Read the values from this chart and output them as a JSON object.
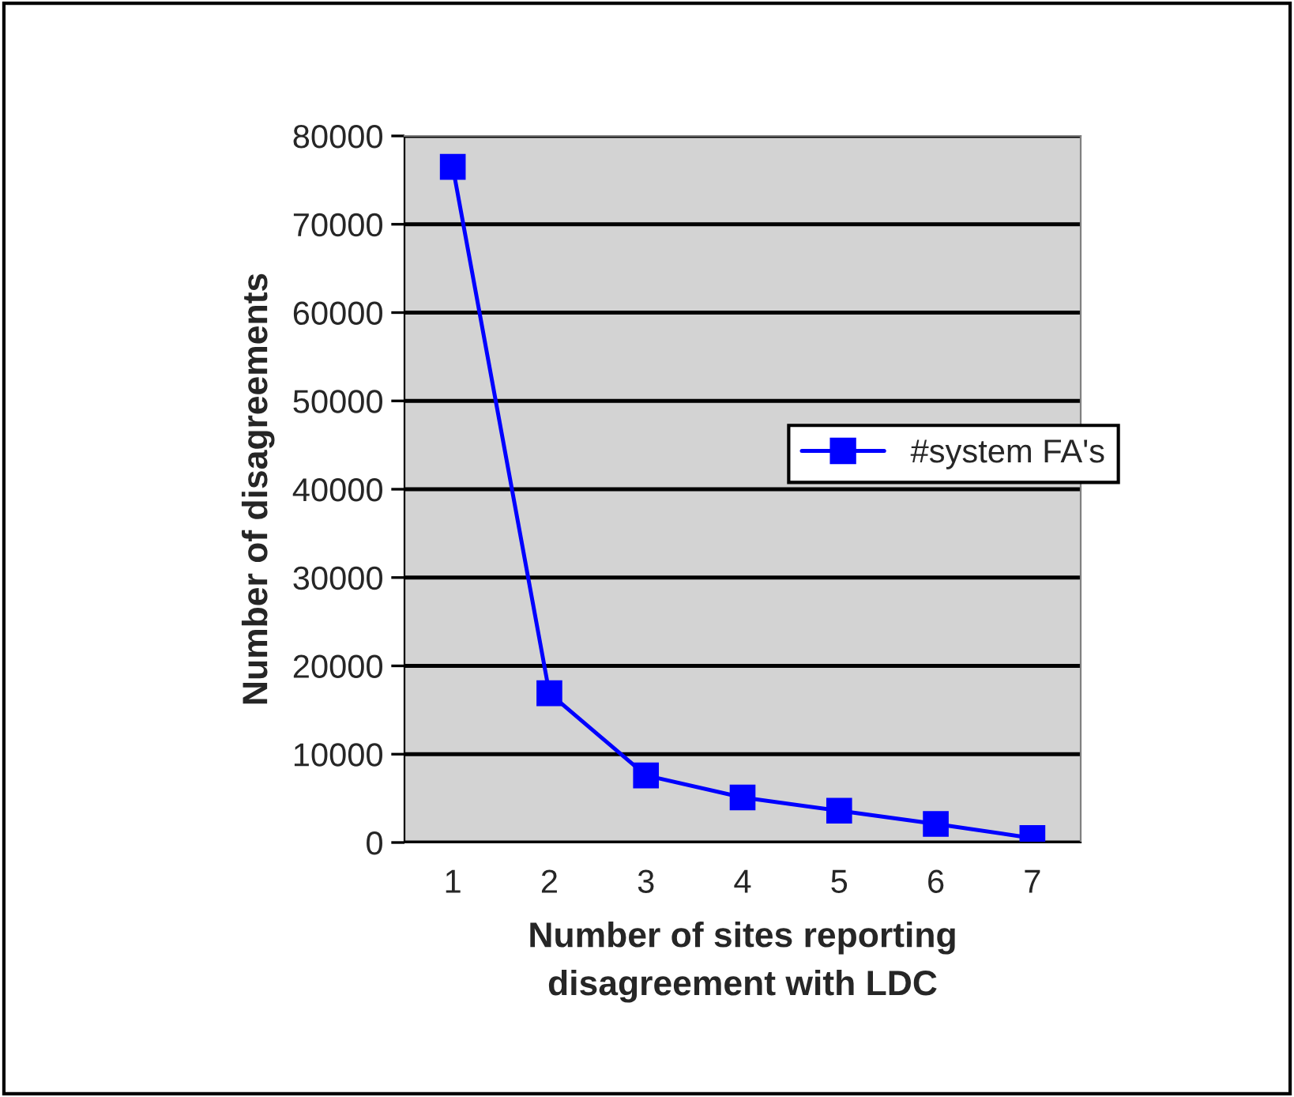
{
  "chart_data": {
    "type": "line",
    "xlabel": "Number of sites reporting\ndisagreement with LDC",
    "ylabel": "Number of disagreements",
    "categories": [
      "1",
      "2",
      "3",
      "4",
      "5",
      "6",
      "7"
    ],
    "series": [
      {
        "name": "#system FA's",
        "color": "#0000ff",
        "values": [
          76500,
          16900,
          7600,
          5100,
          3600,
          2100,
          500
        ]
      }
    ],
    "ylim": [
      0,
      80000
    ],
    "yticks": [
      0,
      10000,
      20000,
      30000,
      40000,
      50000,
      60000,
      70000,
      80000
    ],
    "grid": "y",
    "legend": "right",
    "marker": "square",
    "line_style": "solid"
  }
}
